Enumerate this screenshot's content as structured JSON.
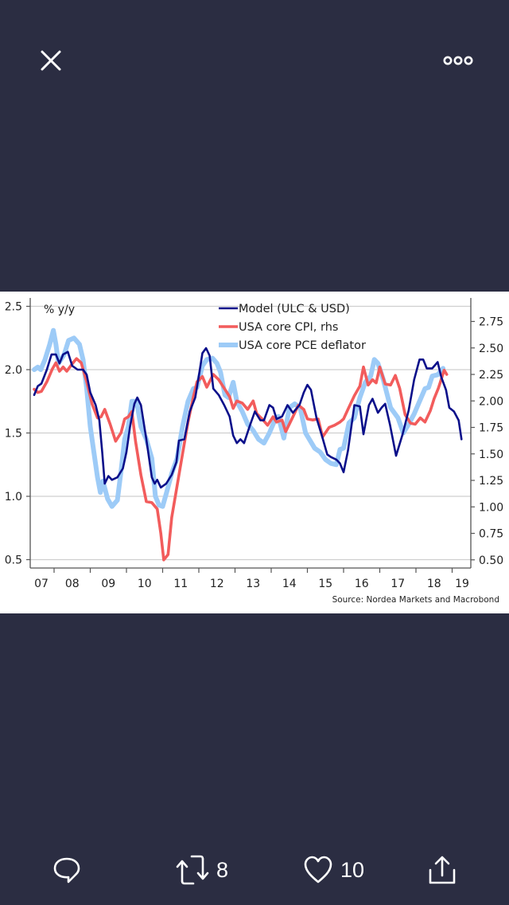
{
  "viewer": {
    "close_icon": "close-icon",
    "more_icon": "more-options-icon"
  },
  "actions": {
    "reply": {
      "icon": "reply-icon",
      "count": ""
    },
    "retweet": {
      "icon": "retweet-icon",
      "count": "8"
    },
    "like": {
      "icon": "heart-icon",
      "count": "10"
    },
    "share": {
      "icon": "share-icon"
    }
  },
  "colors": {
    "background": "#2b2d42",
    "model": "#0a0f8a",
    "cpi": "#f25c5c",
    "pce": "#9dcbf7"
  },
  "chart_data": {
    "type": "line",
    "unit_label": "% y/y",
    "source": "Source: Nordea Markets and Macrobond",
    "x_tick_labels": [
      "07",
      "08",
      "09",
      "10",
      "11",
      "12",
      "13",
      "14",
      "15",
      "16",
      "17",
      "18",
      "19"
    ],
    "xlim": [
      2007.0,
      2019.45
    ],
    "left_axis": {
      "ticks": [
        "2.5",
        "2.0",
        "1.5",
        "1.0",
        "0.5"
      ],
      "values": [
        2.5,
        2.0,
        1.5,
        1.0,
        0.5
      ],
      "ylim": [
        0.43,
        2.6
      ]
    },
    "right_axis": {
      "ticks": [
        "2.75",
        "2.50",
        "2.25",
        "2.00",
        "1.75",
        "1.50",
        "1.25",
        "1.00",
        "0.75",
        "0.50"
      ],
      "values": [
        2.75,
        2.5,
        2.25,
        2.0,
        1.75,
        1.5,
        1.25,
        1.0,
        0.75,
        0.5
      ],
      "ylim": [
        0.42,
        3.02
      ]
    },
    "gridlines": [
      2.5,
      2.0,
      1.5,
      1.0,
      0.5
    ],
    "legend_position": "top-center",
    "series": [
      {
        "name": "Model (ULC & USD)",
        "axis": "left",
        "color_key": "model",
        "points": [
          [
            2007.45,
            1.8
          ],
          [
            2007.55,
            1.87
          ],
          [
            2007.65,
            1.89
          ],
          [
            2007.8,
            2.0
          ],
          [
            2007.93,
            2.12
          ],
          [
            2008.05,
            2.12
          ],
          [
            2008.15,
            2.05
          ],
          [
            2008.25,
            2.12
          ],
          [
            2008.38,
            2.14
          ],
          [
            2008.5,
            2.03
          ],
          [
            2008.65,
            2.0
          ],
          [
            2008.8,
            2.0
          ],
          [
            2008.9,
            1.96
          ],
          [
            2009.0,
            1.82
          ],
          [
            2009.15,
            1.72
          ],
          [
            2009.25,
            1.6
          ],
          [
            2009.33,
            1.35
          ],
          [
            2009.4,
            1.1
          ],
          [
            2009.5,
            1.16
          ],
          [
            2009.6,
            1.13
          ],
          [
            2009.75,
            1.15
          ],
          [
            2009.9,
            1.22
          ],
          [
            2010.0,
            1.35
          ],
          [
            2010.1,
            1.55
          ],
          [
            2010.22,
            1.73
          ],
          [
            2010.3,
            1.78
          ],
          [
            2010.4,
            1.72
          ],
          [
            2010.55,
            1.45
          ],
          [
            2010.7,
            1.15
          ],
          [
            2010.78,
            1.1
          ],
          [
            2010.85,
            1.13
          ],
          [
            2010.95,
            1.07
          ],
          [
            2011.1,
            1.1
          ],
          [
            2011.25,
            1.17
          ],
          [
            2011.38,
            1.27
          ],
          [
            2011.45,
            1.44
          ],
          [
            2011.6,
            1.45
          ],
          [
            2011.75,
            1.67
          ],
          [
            2011.9,
            1.78
          ],
          [
            2012.0,
            1.95
          ],
          [
            2012.1,
            2.13
          ],
          [
            2012.2,
            2.17
          ],
          [
            2012.3,
            2.11
          ],
          [
            2012.4,
            1.85
          ],
          [
            2012.55,
            1.8
          ],
          [
            2012.7,
            1.72
          ],
          [
            2012.85,
            1.63
          ],
          [
            2012.95,
            1.48
          ],
          [
            2013.05,
            1.42
          ],
          [
            2013.15,
            1.45
          ],
          [
            2013.25,
            1.42
          ],
          [
            2013.4,
            1.55
          ],
          [
            2013.55,
            1.67
          ],
          [
            2013.7,
            1.6
          ],
          [
            2013.8,
            1.6
          ],
          [
            2013.95,
            1.72
          ],
          [
            2014.05,
            1.7
          ],
          [
            2014.15,
            1.61
          ],
          [
            2014.3,
            1.63
          ],
          [
            2014.45,
            1.72
          ],
          [
            2014.6,
            1.66
          ],
          [
            2014.78,
            1.72
          ],
          [
            2014.9,
            1.82
          ],
          [
            2015.0,
            1.88
          ],
          [
            2015.1,
            1.84
          ],
          [
            2015.25,
            1.62
          ],
          [
            2015.4,
            1.48
          ],
          [
            2015.55,
            1.33
          ],
          [
            2015.65,
            1.31
          ],
          [
            2015.8,
            1.29
          ],
          [
            2015.9,
            1.26
          ],
          [
            2016.0,
            1.19
          ],
          [
            2016.12,
            1.36
          ],
          [
            2016.3,
            1.72
          ],
          [
            2016.45,
            1.71
          ],
          [
            2016.55,
            1.49
          ],
          [
            2016.7,
            1.72
          ],
          [
            2016.8,
            1.77
          ],
          [
            2016.95,
            1.66
          ],
          [
            2017.05,
            1.7
          ],
          [
            2017.15,
            1.73
          ],
          [
            2017.28,
            1.57
          ],
          [
            2017.45,
            1.32
          ],
          [
            2017.63,
            1.49
          ],
          [
            2017.8,
            1.68
          ],
          [
            2017.95,
            1.92
          ],
          [
            2018.1,
            2.08
          ],
          [
            2018.2,
            2.08
          ],
          [
            2018.3,
            2.01
          ],
          [
            2018.45,
            2.01
          ],
          [
            2018.6,
            2.06
          ],
          [
            2018.7,
            1.94
          ],
          [
            2018.83,
            1.84
          ],
          [
            2018.92,
            1.7
          ],
          [
            2019.05,
            1.67
          ],
          [
            2019.18,
            1.6
          ],
          [
            2019.26,
            1.45
          ]
        ]
      },
      {
        "name": "USA core CPI, rhs",
        "axis": "right",
        "color_key": "cpi",
        "points": [
          [
            2007.45,
            2.11
          ],
          [
            2007.55,
            2.08
          ],
          [
            2007.65,
            2.09
          ],
          [
            2007.8,
            2.18
          ],
          [
            2007.95,
            2.3
          ],
          [
            2008.05,
            2.36
          ],
          [
            2008.15,
            2.28
          ],
          [
            2008.25,
            2.32
          ],
          [
            2008.35,
            2.28
          ],
          [
            2008.5,
            2.35
          ],
          [
            2008.62,
            2.4
          ],
          [
            2008.75,
            2.36
          ],
          [
            2008.9,
            2.18
          ],
          [
            2009.05,
            1.97
          ],
          [
            2009.2,
            1.84
          ],
          [
            2009.3,
            1.85
          ],
          [
            2009.4,
            1.92
          ],
          [
            2009.55,
            1.78
          ],
          [
            2009.7,
            1.62
          ],
          [
            2009.85,
            1.7
          ],
          [
            2009.95,
            1.83
          ],
          [
            2010.05,
            1.85
          ],
          [
            2010.15,
            1.9
          ],
          [
            2010.25,
            1.62
          ],
          [
            2010.4,
            1.3
          ],
          [
            2010.55,
            1.05
          ],
          [
            2010.7,
            1.04
          ],
          [
            2010.85,
            0.98
          ],
          [
            2010.95,
            0.75
          ],
          [
            2011.03,
            0.5
          ],
          [
            2011.15,
            0.55
          ],
          [
            2011.25,
            0.9
          ],
          [
            2011.4,
            1.2
          ],
          [
            2011.55,
            1.5
          ],
          [
            2011.7,
            1.8
          ],
          [
            2011.85,
            2.04
          ],
          [
            2011.95,
            2.18
          ],
          [
            2012.1,
            2.23
          ],
          [
            2012.22,
            2.13
          ],
          [
            2012.4,
            2.25
          ],
          [
            2012.55,
            2.2
          ],
          [
            2012.7,
            2.12
          ],
          [
            2012.85,
            2.04
          ],
          [
            2012.95,
            1.93
          ],
          [
            2013.05,
            2.0
          ],
          [
            2013.2,
            1.98
          ],
          [
            2013.35,
            1.92
          ],
          [
            2013.5,
            2.0
          ],
          [
            2013.6,
            1.88
          ],
          [
            2013.75,
            1.83
          ],
          [
            2013.9,
            1.77
          ],
          [
            2014.05,
            1.85
          ],
          [
            2014.15,
            1.8
          ],
          [
            2014.3,
            1.82
          ],
          [
            2014.4,
            1.71
          ],
          [
            2014.6,
            1.85
          ],
          [
            2014.75,
            1.96
          ],
          [
            2014.9,
            1.92
          ],
          [
            2015.0,
            1.83
          ],
          [
            2015.15,
            1.82
          ],
          [
            2015.3,
            1.83
          ],
          [
            2015.42,
            1.66
          ],
          [
            2015.6,
            1.75
          ],
          [
            2015.75,
            1.77
          ],
          [
            2015.9,
            1.8
          ],
          [
            2016.0,
            1.83
          ],
          [
            2016.12,
            1.92
          ],
          [
            2016.3,
            2.05
          ],
          [
            2016.45,
            2.14
          ],
          [
            2016.55,
            2.32
          ],
          [
            2016.68,
            2.15
          ],
          [
            2016.8,
            2.2
          ],
          [
            2016.9,
            2.17
          ],
          [
            2017.0,
            2.32
          ],
          [
            2017.15,
            2.16
          ],
          [
            2017.3,
            2.15
          ],
          [
            2017.43,
            2.24
          ],
          [
            2017.55,
            2.12
          ],
          [
            2017.7,
            1.87
          ],
          [
            2017.85,
            1.79
          ],
          [
            2017.98,
            1.78
          ],
          [
            2018.12,
            1.84
          ],
          [
            2018.25,
            1.8
          ],
          [
            2018.4,
            1.91
          ],
          [
            2018.5,
            2.02
          ],
          [
            2018.62,
            2.12
          ],
          [
            2018.78,
            2.29
          ],
          [
            2018.85,
            2.25
          ]
        ]
      },
      {
        "name": "USA core PCE deflator",
        "axis": "left",
        "color_key": "pce",
        "points": [
          [
            2007.45,
            2.0
          ],
          [
            2007.55,
            2.02
          ],
          [
            2007.63,
            2.0
          ],
          [
            2007.75,
            2.08
          ],
          [
            2007.88,
            2.2
          ],
          [
            2007.98,
            2.31
          ],
          [
            2008.05,
            2.2
          ],
          [
            2008.12,
            2.05
          ],
          [
            2008.28,
            2.12
          ],
          [
            2008.4,
            2.23
          ],
          [
            2008.55,
            2.25
          ],
          [
            2008.7,
            2.2
          ],
          [
            2008.8,
            2.08
          ],
          [
            2008.9,
            1.85
          ],
          [
            2009.0,
            1.55
          ],
          [
            2009.1,
            1.35
          ],
          [
            2009.2,
            1.15
          ],
          [
            2009.28,
            1.03
          ],
          [
            2009.35,
            1.12
          ],
          [
            2009.48,
            0.98
          ],
          [
            2009.6,
            0.92
          ],
          [
            2009.75,
            0.97
          ],
          [
            2009.85,
            1.2
          ],
          [
            2009.95,
            1.45
          ],
          [
            2010.05,
            1.55
          ],
          [
            2010.15,
            1.75
          ],
          [
            2010.28,
            1.75
          ],
          [
            2010.4,
            1.55
          ],
          [
            2010.55,
            1.45
          ],
          [
            2010.7,
            1.3
          ],
          [
            2010.8,
            1.0
          ],
          [
            2010.9,
            0.93
          ],
          [
            2011.0,
            0.92
          ],
          [
            2011.1,
            1.02
          ],
          [
            2011.25,
            1.18
          ],
          [
            2011.4,
            1.3
          ],
          [
            2011.55,
            1.55
          ],
          [
            2011.7,
            1.75
          ],
          [
            2011.85,
            1.85
          ],
          [
            2011.95,
            1.86
          ],
          [
            2012.1,
            2.03
          ],
          [
            2012.22,
            2.08
          ],
          [
            2012.38,
            2.09
          ],
          [
            2012.5,
            2.05
          ],
          [
            2012.6,
            1.98
          ],
          [
            2012.72,
            1.8
          ],
          [
            2012.82,
            1.78
          ],
          [
            2012.95,
            1.9
          ],
          [
            2013.05,
            1.75
          ],
          [
            2013.2,
            1.67
          ],
          [
            2013.35,
            1.57
          ],
          [
            2013.5,
            1.52
          ],
          [
            2013.65,
            1.45
          ],
          [
            2013.8,
            1.42
          ],
          [
            2013.95,
            1.5
          ],
          [
            2014.1,
            1.6
          ],
          [
            2014.2,
            1.63
          ],
          [
            2014.35,
            1.46
          ],
          [
            2014.5,
            1.7
          ],
          [
            2014.65,
            1.73
          ],
          [
            2014.8,
            1.7
          ],
          [
            2014.95,
            1.5
          ],
          [
            2015.2,
            1.38
          ],
          [
            2015.35,
            1.35
          ],
          [
            2015.5,
            1.29
          ],
          [
            2015.65,
            1.26
          ],
          [
            2015.8,
            1.25
          ],
          [
            2015.9,
            1.37
          ],
          [
            2016.0,
            1.38
          ],
          [
            2016.15,
            1.58
          ],
          [
            2016.3,
            1.62
          ],
          [
            2016.45,
            1.78
          ],
          [
            2016.6,
            1.9
          ],
          [
            2016.75,
            1.95
          ],
          [
            2016.85,
            2.08
          ],
          [
            2016.95,
            2.05
          ],
          [
            2017.1,
            1.92
          ],
          [
            2017.3,
            1.7
          ],
          [
            2017.5,
            1.62
          ],
          [
            2017.65,
            1.5
          ],
          [
            2017.8,
            1.57
          ],
          [
            2017.95,
            1.65
          ],
          [
            2018.1,
            1.75
          ],
          [
            2018.25,
            1.85
          ],
          [
            2018.35,
            1.86
          ],
          [
            2018.45,
            1.95
          ],
          [
            2018.6,
            1.96
          ],
          [
            2018.75,
            2.01
          ]
        ]
      }
    ]
  }
}
